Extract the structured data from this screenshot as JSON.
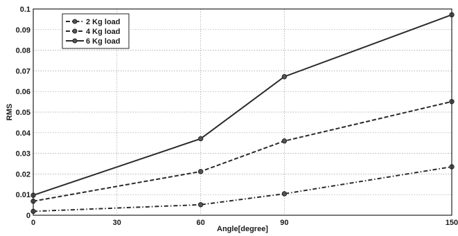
{
  "chart_data": {
    "type": "line",
    "xlabel": "Angle[degree]",
    "ylabel": "RMS",
    "xlim": [
      0,
      150
    ],
    "ylim": [
      0,
      0.1
    ],
    "x_ticks": [
      "0",
      "30",
      "60",
      "90",
      "150"
    ],
    "x_tick_values": [
      0,
      30,
      60,
      90,
      150
    ],
    "y_ticks": [
      "0",
      "0.01",
      "0.02",
      "0.03",
      "0.04",
      "0.05",
      "0.06",
      "0.07",
      "0.08",
      "0.09",
      "0.1"
    ],
    "y_tick_values": [
      0,
      0.01,
      0.02,
      0.03,
      0.04,
      0.05,
      0.06,
      0.07,
      0.08,
      0.09,
      0.1
    ],
    "grid": true,
    "legend_position": "top-left",
    "x": [
      0,
      60,
      90,
      150
    ],
    "series": [
      {
        "name": "2 Kg load",
        "values": [
          0.0019,
          0.0051,
          0.0104,
          0.0235
        ],
        "dash": "dash-dot",
        "color": "#2a2a2a"
      },
      {
        "name": "4 Kg load",
        "values": [
          0.0068,
          0.0212,
          0.036,
          0.0551
        ],
        "dash": "dashed",
        "color": "#2a2a2a"
      },
      {
        "name": "6 Kg load",
        "values": [
          0.0097,
          0.0371,
          0.0672,
          0.0972
        ],
        "dash": "solid",
        "color": "#2a2a2a"
      }
    ]
  }
}
